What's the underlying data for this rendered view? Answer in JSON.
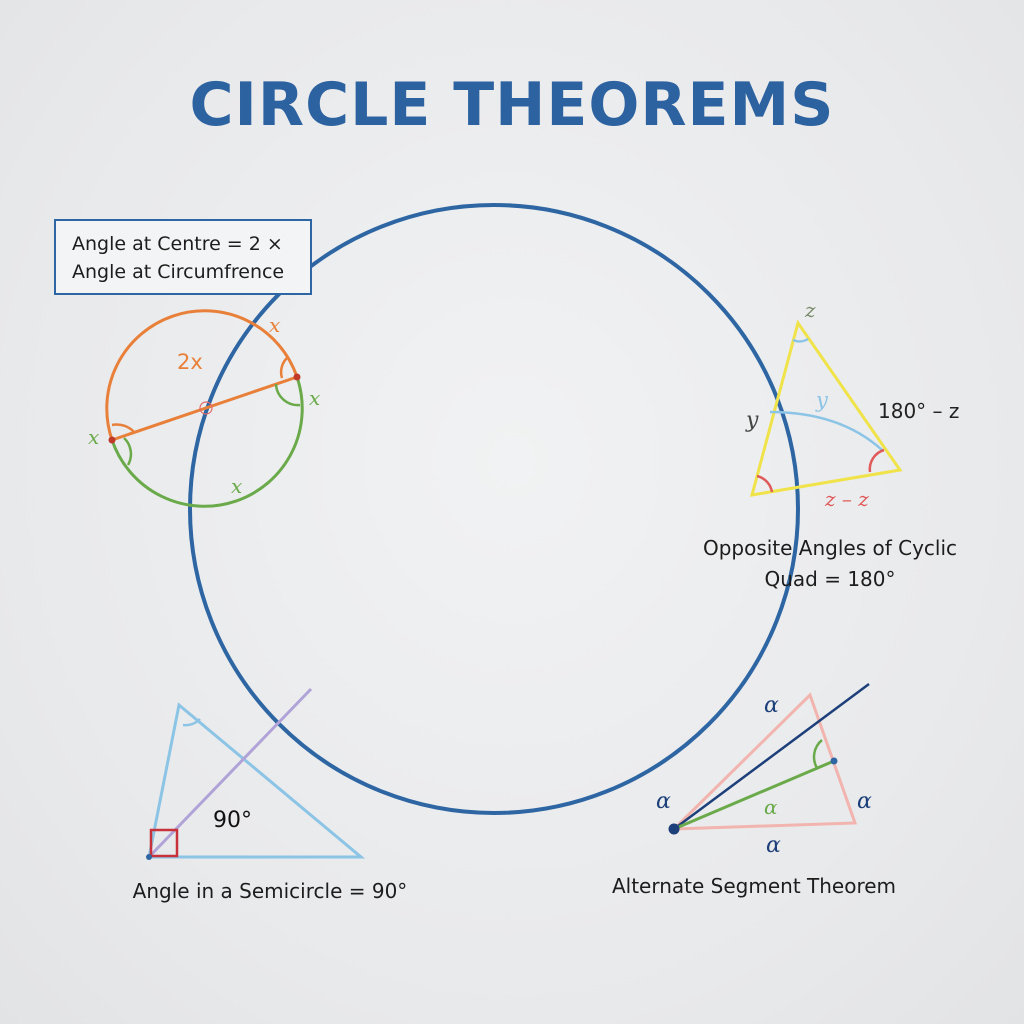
{
  "title": "CIRCLE THEOREMS",
  "centre_theorem": {
    "box_line1": "Angle at Centre = 2 ×",
    "box_line2": "Angle at Circumfrence",
    "label_centre": "2x",
    "label_top": "x",
    "label_left": "x",
    "label_right": "x",
    "label_bottom": "x"
  },
  "cyclic_quad": {
    "label_top": "z",
    "label_left": "y",
    "label_inner": "y",
    "label_right": "180° – z",
    "label_bottom": "z – z",
    "caption_line1": "Opposite Angles of Cyclic",
    "caption_line2": "Quad = 180°"
  },
  "semicircle": {
    "label_angle": "90°",
    "caption": "Angle in a Semicircle = 90°"
  },
  "alternate_segment": {
    "label_top": "α",
    "label_left": "α",
    "label_inner": "α",
    "label_right": "α",
    "label_bottom": "α",
    "caption": "Alternate Segment Theorem"
  },
  "colors": {
    "title": "#2d62a0",
    "main_circle": "#2e66a3",
    "orange": "#e8803a",
    "green": "#6aaa4a",
    "yellow": "#f0e34a",
    "light_blue": "#8cc4e6",
    "red": "#e05a5a",
    "purple": "#b0a3d8",
    "pink": "#f2b4ae",
    "navy": "#1d3f7a"
  }
}
